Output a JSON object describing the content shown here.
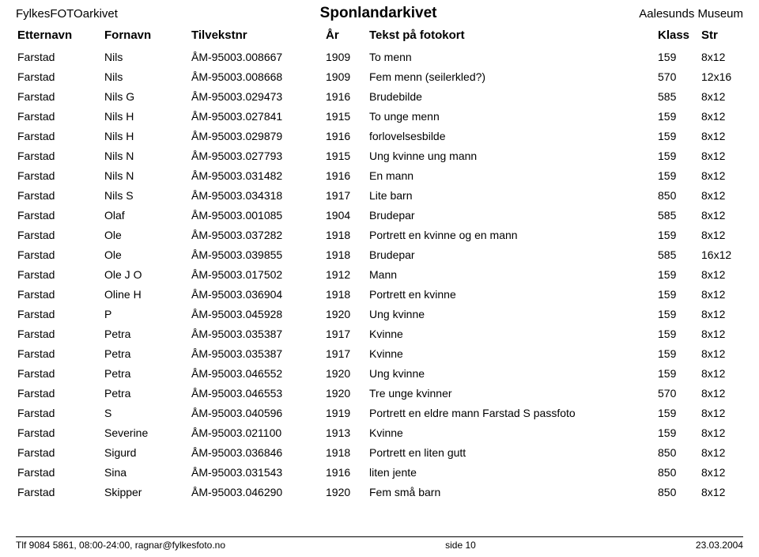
{
  "header": {
    "left": "FylkesFOTOarkivet",
    "center": "Sponlandarkivet",
    "right": "Aalesunds Museum"
  },
  "columns": {
    "etternavn": "Etternavn",
    "fornavn": "Fornavn",
    "tilvekstnr": "Tilvekstnr",
    "ar": "År",
    "tekst": "Tekst på fotokort",
    "klass": "Klass",
    "str": "Str"
  },
  "rows": [
    {
      "etternavn": "Farstad",
      "fornavn": "Nils",
      "tilvekstnr": "ÅM-95003.008667",
      "ar": "1909",
      "tekst": "To menn",
      "klass": "159",
      "str": "8x12"
    },
    {
      "etternavn": "Farstad",
      "fornavn": "Nils",
      "tilvekstnr": "ÅM-95003.008668",
      "ar": "1909",
      "tekst": "Fem menn (seilerkled?)",
      "klass": "570",
      "str": "12x16"
    },
    {
      "etternavn": "Farstad",
      "fornavn": "Nils G",
      "tilvekstnr": "ÅM-95003.029473",
      "ar": "1916",
      "tekst": "Brudebilde",
      "klass": "585",
      "str": "8x12"
    },
    {
      "etternavn": "Farstad",
      "fornavn": "Nils H",
      "tilvekstnr": "ÅM-95003.027841",
      "ar": "1915",
      "tekst": "To unge menn",
      "klass": "159",
      "str": "8x12"
    },
    {
      "etternavn": "Farstad",
      "fornavn": "Nils H",
      "tilvekstnr": "ÅM-95003.029879",
      "ar": "1916",
      "tekst": "forlovelsesbilde",
      "klass": "159",
      "str": "8x12"
    },
    {
      "etternavn": "Farstad",
      "fornavn": "Nils N",
      "tilvekstnr": "ÅM-95003.027793",
      "ar": "1915",
      "tekst": "Ung kvinne ung mann",
      "klass": "159",
      "str": "8x12"
    },
    {
      "etternavn": "Farstad",
      "fornavn": "Nils N",
      "tilvekstnr": "ÅM-95003.031482",
      "ar": "1916",
      "tekst": "En mann",
      "klass": "159",
      "str": "8x12"
    },
    {
      "etternavn": "Farstad",
      "fornavn": "Nils S",
      "tilvekstnr": "ÅM-95003.034318",
      "ar": "1917",
      "tekst": "Lite barn",
      "klass": "850",
      "str": "8x12"
    },
    {
      "etternavn": "Farstad",
      "fornavn": "Olaf",
      "tilvekstnr": "ÅM-95003.001085",
      "ar": "1904",
      "tekst": "Brudepar",
      "klass": "585",
      "str": "8x12"
    },
    {
      "etternavn": "Farstad",
      "fornavn": "Ole",
      "tilvekstnr": "ÅM-95003.037282",
      "ar": "1918",
      "tekst": "Portrett en kvinne og en mann",
      "klass": "159",
      "str": "8x12"
    },
    {
      "etternavn": "Farstad",
      "fornavn": "Ole",
      "tilvekstnr": "ÅM-95003.039855",
      "ar": "1918",
      "tekst": "Brudepar",
      "klass": "585",
      "str": "16x12"
    },
    {
      "etternavn": "Farstad",
      "fornavn": "Ole J O",
      "tilvekstnr": "ÅM-95003.017502",
      "ar": "1912",
      "tekst": "Mann",
      "klass": "159",
      "str": "8x12"
    },
    {
      "etternavn": "Farstad",
      "fornavn": "Oline H",
      "tilvekstnr": "ÅM-95003.036904",
      "ar": "1918",
      "tekst": "Portrett en kvinne",
      "klass": "159",
      "str": "8x12"
    },
    {
      "etternavn": "Farstad",
      "fornavn": "P",
      "tilvekstnr": "ÅM-95003.045928",
      "ar": "1920",
      "tekst": "Ung kvinne",
      "klass": "159",
      "str": "8x12"
    },
    {
      "etternavn": "Farstad",
      "fornavn": "Petra",
      "tilvekstnr": "ÅM-95003.035387",
      "ar": "1917",
      "tekst": "Kvinne",
      "klass": "159",
      "str": "8x12"
    },
    {
      "etternavn": "Farstad",
      "fornavn": "Petra",
      "tilvekstnr": "ÅM-95003.035387",
      "ar": "1917",
      "tekst": "Kvinne",
      "klass": "159",
      "str": "8x12"
    },
    {
      "etternavn": "Farstad",
      "fornavn": "Petra",
      "tilvekstnr": "ÅM-95003.046552",
      "ar": "1920",
      "tekst": "Ung kvinne",
      "klass": "159",
      "str": "8x12"
    },
    {
      "etternavn": "Farstad",
      "fornavn": "Petra",
      "tilvekstnr": "ÅM-95003.046553",
      "ar": "1920",
      "tekst": "Tre unge kvinner",
      "klass": "570",
      "str": "8x12"
    },
    {
      "etternavn": "Farstad",
      "fornavn": "S",
      "tilvekstnr": "ÅM-95003.040596",
      "ar": "1919",
      "tekst": "Portrett en eldre mann Farstad S passfoto",
      "klass": "159",
      "str": "8x12"
    },
    {
      "etternavn": "Farstad",
      "fornavn": "Severine",
      "tilvekstnr": "ÅM-95003.021100",
      "ar": "1913",
      "tekst": "Kvinne",
      "klass": "159",
      "str": "8x12"
    },
    {
      "etternavn": "Farstad",
      "fornavn": "Sigurd",
      "tilvekstnr": "ÅM-95003.036846",
      "ar": "1918",
      "tekst": "Portrett en liten gutt",
      "klass": "850",
      "str": "8x12"
    },
    {
      "etternavn": "Farstad",
      "fornavn": "Sina",
      "tilvekstnr": "ÅM-95003.031543",
      "ar": "1916",
      "tekst": "liten jente",
      "klass": "850",
      "str": "8x12"
    },
    {
      "etternavn": "Farstad",
      "fornavn": "Skipper",
      "tilvekstnr": "ÅM-95003.046290",
      "ar": "1920",
      "tekst": "Fem små barn",
      "klass": "850",
      "str": "8x12"
    }
  ],
  "footer": {
    "left": "Tlf 9084 5861, 08:00-24:00, ragnar@fylkesfoto.no",
    "center": "side  10",
    "right": "23.03.2004"
  }
}
